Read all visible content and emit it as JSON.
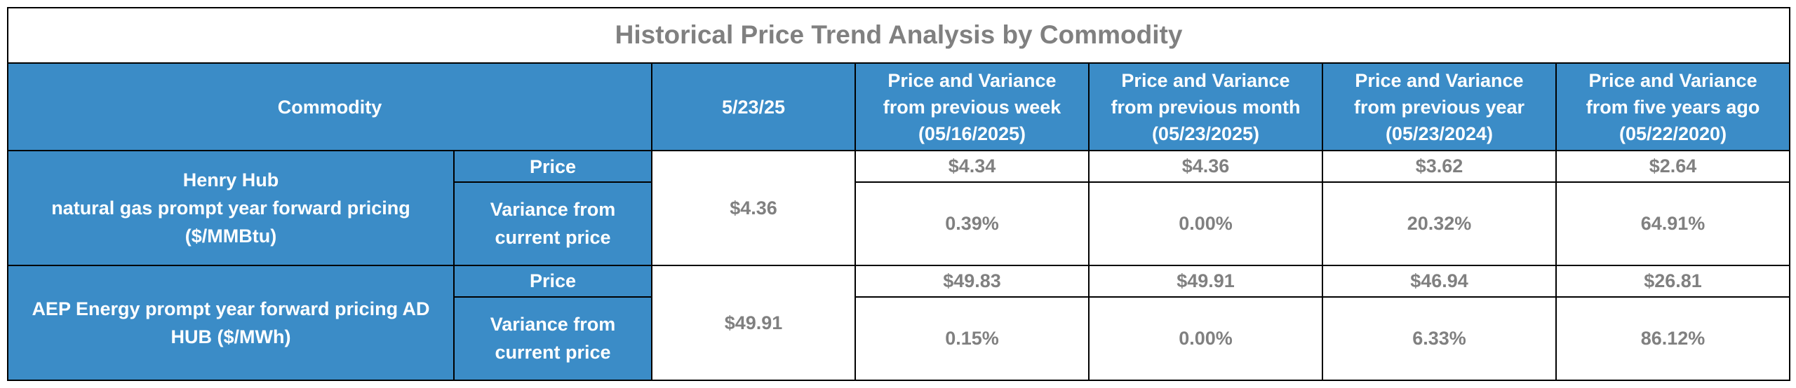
{
  "title": "Historical Price Trend Analysis by Commodity",
  "headers": {
    "commodity": "Commodity",
    "current_date": "5/23/25",
    "week": [
      "Price and Variance",
      "from previous week",
      "(05/16/2025)"
    ],
    "month": [
      "Price and Variance",
      "from previous month",
      "(05/23/2025)"
    ],
    "year": [
      "Price and Variance",
      "from previous year",
      "(05/23/2024)"
    ],
    "five_years": [
      "Price and Variance",
      "from five years ago",
      "(05/22/2020)"
    ]
  },
  "rows": [
    {
      "name_lines": [
        "Henry Hub",
        "natural gas prompt year forward pricing",
        "($/MMBtu)"
      ],
      "current": "$4.36",
      "price_label": "Price",
      "variance_label": [
        "Variance from",
        "current price"
      ],
      "prices": [
        "$4.34",
        "$4.36",
        "$3.62",
        "$2.64"
      ],
      "variances": [
        "0.39%",
        "0.00%",
        "20.32%",
        "64.91%"
      ]
    },
    {
      "name_lines": [
        "AEP Energy prompt year forward pricing AD",
        "HUB ($/MWh)"
      ],
      "current": "$49.91",
      "price_label": "Price",
      "variance_label": [
        "Variance from",
        "current price"
      ],
      "prices": [
        "$49.83",
        "$49.91",
        "$46.94",
        "$26.81"
      ],
      "variances": [
        "0.15%",
        "0.00%",
        "6.33%",
        "86.12%"
      ]
    }
  ]
}
